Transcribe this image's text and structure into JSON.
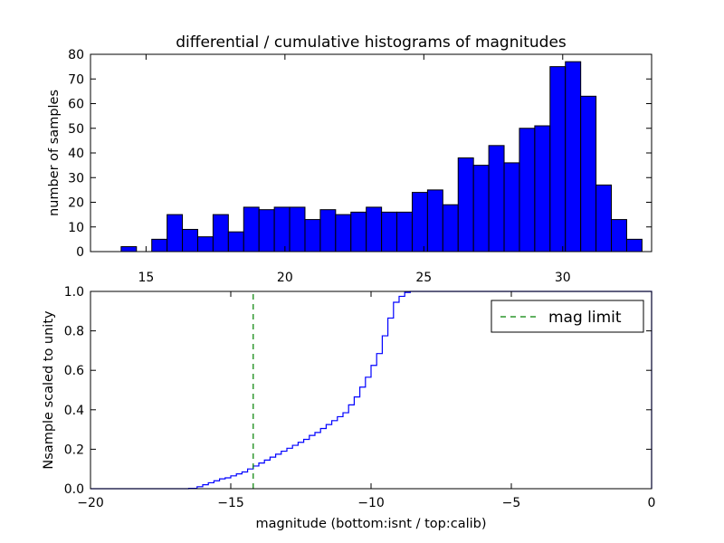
{
  "chart_data": [
    {
      "type": "bar",
      "panel": "top",
      "title": "differential / cumulative histograms of magnitudes",
      "xlabel": "",
      "ylabel": "number of samples",
      "xlim": [
        13.0,
        33.2
      ],
      "ylim": [
        0,
        80
      ],
      "xticks": [
        15,
        20,
        25,
        30
      ],
      "yticks": [
        0,
        10,
        20,
        30,
        40,
        50,
        60,
        70,
        80
      ],
      "bar_color": "#0000ff",
      "bin_start": 13.0,
      "bin_width": 0.5515,
      "values": [
        0,
        0,
        2,
        0,
        5,
        15,
        9,
        6,
        15,
        8,
        18,
        17,
        18,
        18,
        13,
        17,
        15,
        16,
        18,
        16,
        16,
        24,
        25,
        19,
        38,
        35,
        43,
        36,
        50,
        51,
        75,
        77,
        63,
        27,
        13,
        5
      ]
    },
    {
      "type": "line",
      "panel": "bottom",
      "title": "",
      "xlabel": "magnitude (bottom:isnt / top:calib)",
      "ylabel": "Nsample scaled to unity",
      "xlim": [
        -20,
        0
      ],
      "ylim": [
        0.0,
        1.0
      ],
      "xticks": [
        -20,
        -15,
        -10,
        -5,
        0
      ],
      "yticks": [
        0.0,
        0.2,
        0.4,
        0.6,
        0.8,
        1.0
      ],
      "series": [
        {
          "name": "cumulative",
          "color": "#0000ff",
          "style": "steps",
          "x": [
            -20.0,
            -16.5,
            -16.2,
            -16.0,
            -15.8,
            -15.6,
            -15.4,
            -15.2,
            -15.0,
            -14.8,
            -14.6,
            -14.4,
            -14.2,
            -14.0,
            -13.8,
            -13.6,
            -13.4,
            -13.2,
            -13.0,
            -12.8,
            -12.6,
            -12.4,
            -12.2,
            -12.0,
            -11.8,
            -11.6,
            -11.4,
            -11.2,
            -11.0,
            -10.8,
            -10.6,
            -10.4,
            -10.2,
            -10.0,
            -9.8,
            -9.6,
            -9.4,
            -9.2,
            -9.0,
            -8.8,
            -8.6,
            -8.4,
            -8.2
          ],
          "y": [
            0.0,
            0.002,
            0.01,
            0.02,
            0.03,
            0.04,
            0.05,
            0.055,
            0.065,
            0.075,
            0.085,
            0.1,
            0.115,
            0.13,
            0.145,
            0.16,
            0.175,
            0.19,
            0.205,
            0.22,
            0.235,
            0.25,
            0.27,
            0.285,
            0.305,
            0.325,
            0.345,
            0.365,
            0.385,
            0.425,
            0.465,
            0.515,
            0.565,
            0.625,
            0.685,
            0.775,
            0.865,
            0.945,
            0.975,
            0.995,
            1.0,
            1.0,
            1.0
          ]
        },
        {
          "name": "mag limit",
          "color": "#008000",
          "style": "dashed-vertical",
          "x": [
            -14.2,
            -14.2
          ],
          "y": [
            0.0,
            1.0
          ]
        }
      ],
      "legend": {
        "entries": [
          "mag limit"
        ],
        "placement": "top-right"
      }
    }
  ]
}
